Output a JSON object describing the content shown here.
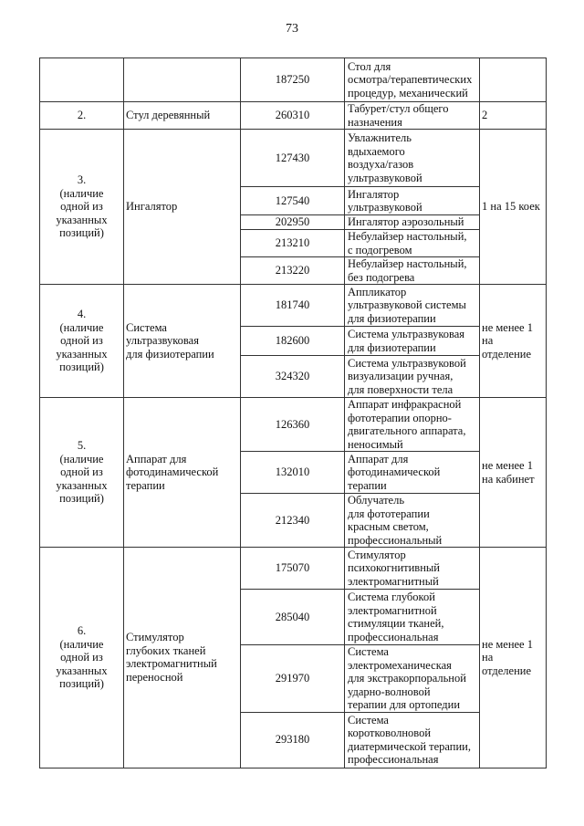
{
  "page_number": "73",
  "groups": [
    {
      "num": "",
      "name": "",
      "qty": "",
      "items": [
        {
          "code": "187250",
          "desc": "Стол для\nосмотра/терапевтических\nпроцедур, механический"
        }
      ]
    },
    {
      "num": "2.",
      "name": "Стул деревянный",
      "qty": "2",
      "items": [
        {
          "code": "260310",
          "desc": "Табурет/стул общего\nназначения"
        }
      ]
    },
    {
      "num": "3.\n(наличие\nодной из\nуказанных\nпозиций)",
      "name": "Ингалятор",
      "qty": "1 на 15 коек",
      "items": [
        {
          "code": "127430",
          "desc": "Увлажнитель\nвдыхаемого\nвоздуха/газов\nультразвуковой"
        },
        {
          "code": "127540",
          "desc": "Ингалятор\nультразвуковой"
        },
        {
          "code": "202950",
          "desc": "Ингалятор аэрозольный"
        },
        {
          "code": "213210",
          "desc": "Небулайзер настольный,\nс подогревом"
        },
        {
          "code": "213220",
          "desc": "Небулайзер настольный,\nбез подогрева"
        }
      ]
    },
    {
      "num": "4.\n(наличие\nодной из\nуказанных\nпозиций)",
      "name": "Система\nультразвуковая\nдля физиотерапии",
      "qty": "не менее 1\nна отделение",
      "items": [
        {
          "code": "181740",
          "desc": "Аппликатор\nультразвуковой системы\nдля физиотерапии"
        },
        {
          "code": "182600",
          "desc": "Система ультразвуковая\nдля физиотерапии"
        },
        {
          "code": "324320",
          "desc": "Система ультразвуковой\nвизуализации ручная,\nдля поверхности тела"
        }
      ]
    },
    {
      "num": "5.\n(наличие\nодной из\nуказанных\nпозиций)",
      "name": "Аппарат для\nфотодинамической\nтерапии",
      "qty": "не менее 1\nна кабинет",
      "items": [
        {
          "code": "126360",
          "desc": "Аппарат инфракрасной\nфототерапии опорно-\nдвигательного аппарата,\nненосимый"
        },
        {
          "code": "132010",
          "desc": "Аппарат для\nфотодинамической\nтерапии"
        },
        {
          "code": "212340",
          "desc": "Облучатель\nдля фототерапии\nкрасным светом,\nпрофессиональный"
        }
      ]
    },
    {
      "num": "6.\n(наличие\nодной из\nуказанных\nпозиций)",
      "name": "Стимулятор\nглубоких тканей\nэлектромагнитный\nпереносной",
      "qty": "не менее 1\nна отделение",
      "items": [
        {
          "code": "175070",
          "desc": "Стимулятор\nпсихокогнитивный\nэлектромагнитный"
        },
        {
          "code": "285040",
          "desc": "Система глубокой\nэлектромагнитной\nстимуляции тканей,\nпрофессиональная"
        },
        {
          "code": "291970",
          "desc": "Система\nэлектромеханическая\nдля экстракорпоральной\nударно-волновой\nтерапии для ортопедии"
        },
        {
          "code": "293180",
          "desc": "Система\nкоротковолновой\nдиатермической терапии,\nпрофессиональная"
        }
      ]
    }
  ]
}
